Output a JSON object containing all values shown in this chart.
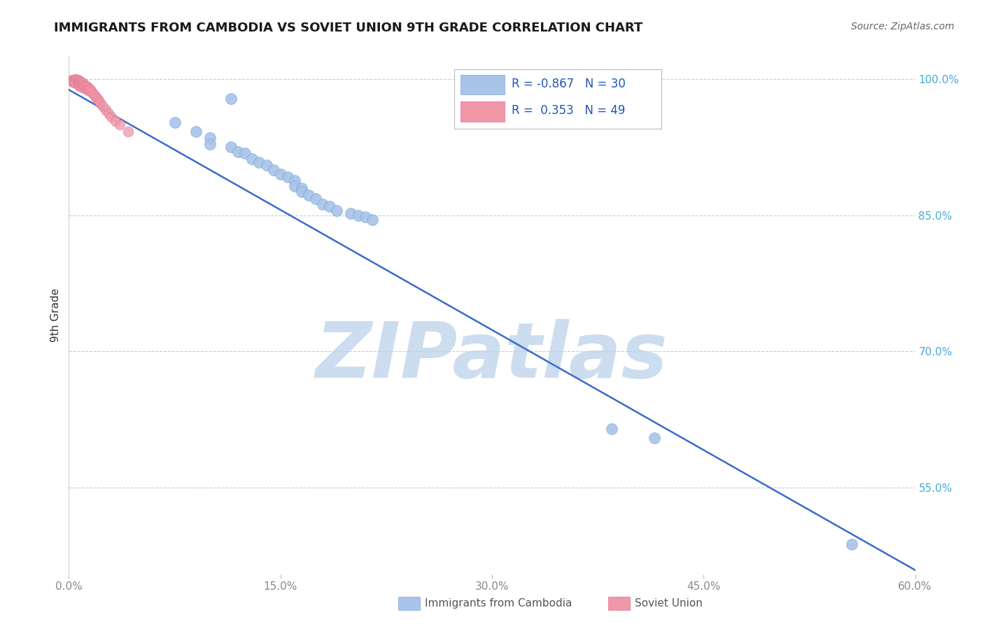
{
  "title": "IMMIGRANTS FROM CAMBODIA VS SOVIET UNION 9TH GRADE CORRELATION CHART",
  "source": "Source: ZipAtlas.com",
  "ylabel": "9th Grade",
  "xlabel_ticks": [
    "0.0%",
    "15.0%",
    "30.0%",
    "45.0%",
    "60.0%"
  ],
  "ylabel_ticks": [
    "55.0%",
    "70.0%",
    "85.0%",
    "100.0%"
  ],
  "xmin": 0.0,
  "xmax": 0.6,
  "ymin": 0.455,
  "ymax": 1.025,
  "legend_blue_r": "-0.867",
  "legend_blue_n": "30",
  "legend_pink_r": "0.353",
  "legend_pink_n": "49",
  "trendline_color": "#3a6cc8",
  "trendline_x": [
    0.0,
    0.605
  ],
  "trendline_y": [
    0.988,
    0.455
  ],
  "blue_scatter_x": [
    0.115,
    0.075,
    0.09,
    0.1,
    0.1,
    0.115,
    0.12,
    0.125,
    0.13,
    0.135,
    0.14,
    0.145,
    0.15,
    0.155,
    0.16,
    0.16,
    0.165,
    0.165,
    0.17,
    0.175,
    0.18,
    0.185,
    0.19,
    0.2,
    0.205,
    0.21,
    0.215,
    0.385,
    0.415,
    0.555
  ],
  "blue_scatter_y": [
    0.978,
    0.952,
    0.942,
    0.935,
    0.928,
    0.925,
    0.92,
    0.918,
    0.912,
    0.908,
    0.905,
    0.9,
    0.895,
    0.892,
    0.888,
    0.882,
    0.88,
    0.876,
    0.872,
    0.868,
    0.862,
    0.86,
    0.855,
    0.852,
    0.85,
    0.848,
    0.845,
    0.615,
    0.605,
    0.488
  ],
  "pink_scatter_x": [
    0.002,
    0.003,
    0.003,
    0.004,
    0.004,
    0.004,
    0.005,
    0.005,
    0.005,
    0.005,
    0.006,
    0.006,
    0.006,
    0.007,
    0.007,
    0.007,
    0.007,
    0.008,
    0.008,
    0.008,
    0.009,
    0.009,
    0.009,
    0.01,
    0.01,
    0.01,
    0.011,
    0.011,
    0.012,
    0.012,
    0.013,
    0.013,
    0.014,
    0.014,
    0.015,
    0.016,
    0.017,
    0.018,
    0.019,
    0.02,
    0.021,
    0.022,
    0.024,
    0.026,
    0.028,
    0.03,
    0.033,
    0.036,
    0.042
  ],
  "pink_scatter_y": [
    0.998,
    0.999,
    0.997,
    0.999,
    0.998,
    0.996,
    1.0,
    0.999,
    0.997,
    0.995,
    0.999,
    0.997,
    0.995,
    0.998,
    0.996,
    0.994,
    0.992,
    0.997,
    0.995,
    0.993,
    0.996,
    0.994,
    0.992,
    0.995,
    0.993,
    0.99,
    0.993,
    0.991,
    0.992,
    0.99,
    0.991,
    0.988,
    0.989,
    0.987,
    0.988,
    0.986,
    0.984,
    0.982,
    0.98,
    0.978,
    0.976,
    0.974,
    0.97,
    0.966,
    0.962,
    0.958,
    0.954,
    0.95,
    0.942
  ],
  "scatter_blue_color": "#a8c4e8",
  "scatter_pink_color": "#f097a8",
  "scatter_blue_edge": "#7aaad8",
  "scatter_pink_edge": "#e07090",
  "watermark_text": "ZIPatlas",
  "watermark_color": "#ccddf0",
  "grid_color": "#cccccc",
  "background_color": "#ffffff",
  "title_color": "#1a1a1a",
  "source_color": "#666666",
  "ylabel_color": "#333333",
  "right_tick_color": "#44aadd",
  "bottom_tick_color": "#888888"
}
